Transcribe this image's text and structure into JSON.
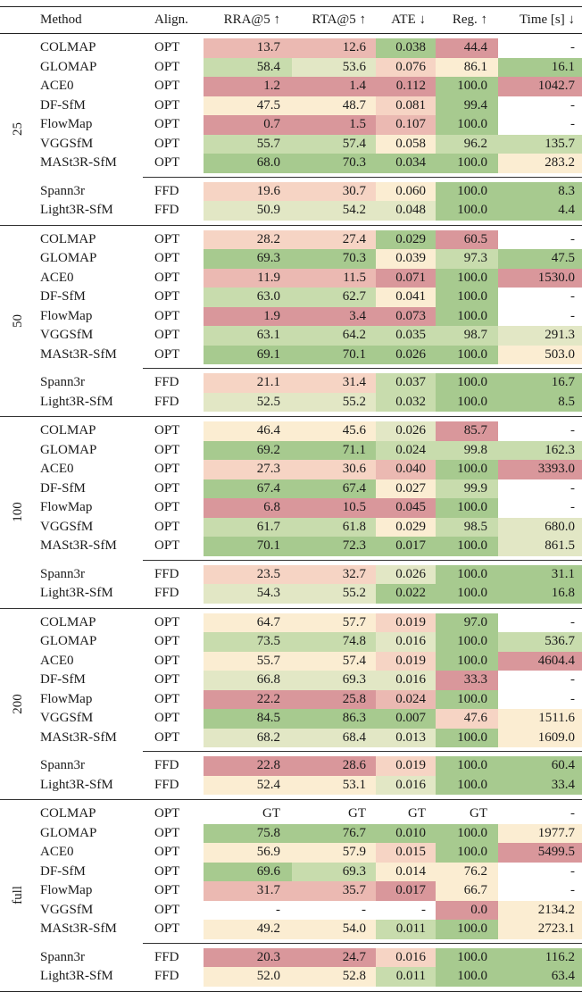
{
  "palette": {
    "R3": "#d9979b",
    "R2": "#ebb9b2",
    "R1": "#f6d4c4",
    "Y": "#fbedd2",
    "G1": "#e2e7c5",
    "G2": "#c8dcad",
    "G3": "#a7ca8f",
    "N": "#ffffff"
  },
  "header": {
    "method": "Method",
    "align": "Align.",
    "rra": "RRA@5 ↑",
    "rta": "RTA@5 ↑",
    "ate": "ATE ↓",
    "reg": "Reg. ↑",
    "time": "Time [s] ↓"
  },
  "groups": [
    {
      "label": "25",
      "rows": [
        {
          "method": "COLMAP",
          "align": "OPT",
          "values": [
            "13.7",
            "12.6",
            "0.038",
            "44.4",
            "-"
          ],
          "colors": [
            "R2",
            "R2",
            "G3",
            "R3",
            "N"
          ]
        },
        {
          "method": "GLOMAP",
          "align": "OPT",
          "values": [
            "58.4",
            "53.6",
            "0.076",
            "86.1",
            "16.1"
          ],
          "colors": [
            "G2",
            "G1",
            "R1",
            "Y",
            "G3"
          ]
        },
        {
          "method": "ACE0",
          "align": "OPT",
          "values": [
            "1.2",
            "1.4",
            "0.112",
            "100.0",
            "1042.7"
          ],
          "colors": [
            "R3",
            "R3",
            "R3",
            "G3",
            "R3"
          ]
        },
        {
          "method": "DF-SfM",
          "align": "OPT",
          "values": [
            "47.5",
            "48.7",
            "0.081",
            "99.4",
            "-"
          ],
          "colors": [
            "Y",
            "Y",
            "R1",
            "G3",
            "N"
          ]
        },
        {
          "method": "FlowMap",
          "align": "OPT",
          "values": [
            "0.7",
            "1.5",
            "0.107",
            "100.0",
            "-"
          ],
          "colors": [
            "R3",
            "R3",
            "R2",
            "G3",
            "N"
          ]
        },
        {
          "method": "VGGSfM",
          "align": "OPT",
          "values": [
            "55.7",
            "57.4",
            "0.058",
            "96.2",
            "135.7"
          ],
          "colors": [
            "G2",
            "G2",
            "Y",
            "G2",
            "G2"
          ]
        },
        {
          "method": "MASt3R-SfM",
          "align": "OPT",
          "values": [
            "68.0",
            "70.3",
            "0.034",
            "100.0",
            "283.2"
          ],
          "colors": [
            "G3",
            "G3",
            "G3",
            "G3",
            "Y"
          ]
        },
        {
          "method": "Spann3r",
          "align": "FFD",
          "values": [
            "19.6",
            "30.7",
            "0.060",
            "100.0",
            "8.3"
          ],
          "colors": [
            "R1",
            "R1",
            "Y",
            "G3",
            "G3"
          ]
        },
        {
          "method": "Light3R-SfM",
          "align": "FFD",
          "values": [
            "50.9",
            "54.2",
            "0.048",
            "100.0",
            "4.4"
          ],
          "colors": [
            "G1",
            "G1",
            "G1",
            "G3",
            "G3"
          ]
        }
      ]
    },
    {
      "label": "50",
      "rows": [
        {
          "method": "COLMAP",
          "align": "OPT",
          "values": [
            "28.2",
            "27.4",
            "0.029",
            "60.5",
            "-"
          ],
          "colors": [
            "R1",
            "R1",
            "G3",
            "R3",
            "N"
          ]
        },
        {
          "method": "GLOMAP",
          "align": "OPT",
          "values": [
            "69.3",
            "70.3",
            "0.039",
            "97.3",
            "47.5"
          ],
          "colors": [
            "G3",
            "G3",
            "Y",
            "G2",
            "G3"
          ]
        },
        {
          "method": "ACE0",
          "align": "OPT",
          "values": [
            "11.9",
            "11.5",
            "0.071",
            "100.0",
            "1530.0"
          ],
          "colors": [
            "R2",
            "R2",
            "R3",
            "G3",
            "R3"
          ]
        },
        {
          "method": "DF-SfM",
          "align": "OPT",
          "values": [
            "63.0",
            "62.7",
            "0.041",
            "100.0",
            "-"
          ],
          "colors": [
            "G2",
            "G2",
            "Y",
            "G3",
            "N"
          ]
        },
        {
          "method": "FlowMap",
          "align": "OPT",
          "values": [
            "1.9",
            "3.4",
            "0.073",
            "100.0",
            "-"
          ],
          "colors": [
            "R3",
            "R3",
            "R3",
            "G3",
            "N"
          ]
        },
        {
          "method": "VGGSfM",
          "align": "OPT",
          "values": [
            "63.1",
            "64.2",
            "0.035",
            "98.7",
            "291.3"
          ],
          "colors": [
            "G2",
            "G2",
            "G2",
            "G2",
            "G1"
          ]
        },
        {
          "method": "MASt3R-SfM",
          "align": "OPT",
          "values": [
            "69.1",
            "70.1",
            "0.026",
            "100.0",
            "503.0"
          ],
          "colors": [
            "G3",
            "G3",
            "G3",
            "G3",
            "Y"
          ]
        },
        {
          "method": "Spann3r",
          "align": "FFD",
          "values": [
            "21.1",
            "31.4",
            "0.037",
            "100.0",
            "16.7"
          ],
          "colors": [
            "R1",
            "R1",
            "G2",
            "G3",
            "G3"
          ]
        },
        {
          "method": "Light3R-SfM",
          "align": "FFD",
          "values": [
            "52.5",
            "55.2",
            "0.032",
            "100.0",
            "8.5"
          ],
          "colors": [
            "G1",
            "G1",
            "G2",
            "G3",
            "G3"
          ]
        }
      ]
    },
    {
      "label": "100",
      "rows": [
        {
          "method": "COLMAP",
          "align": "OPT",
          "values": [
            "46.4",
            "45.6",
            "0.026",
            "85.7",
            "-"
          ],
          "colors": [
            "Y",
            "Y",
            "G1",
            "R3",
            "N"
          ]
        },
        {
          "method": "GLOMAP",
          "align": "OPT",
          "values": [
            "69.2",
            "71.1",
            "0.024",
            "99.8",
            "162.3"
          ],
          "colors": [
            "G3",
            "G3",
            "G2",
            "G2",
            "G2"
          ]
        },
        {
          "method": "ACE0",
          "align": "OPT",
          "values": [
            "27.3",
            "30.6",
            "0.040",
            "100.0",
            "3393.0"
          ],
          "colors": [
            "R1",
            "R1",
            "R2",
            "G3",
            "R3"
          ]
        },
        {
          "method": "DF-SfM",
          "align": "OPT",
          "values": [
            "67.4",
            "67.4",
            "0.027",
            "99.9",
            "-"
          ],
          "colors": [
            "G3",
            "G3",
            "Y",
            "G2",
            "N"
          ]
        },
        {
          "method": "FlowMap",
          "align": "OPT",
          "values": [
            "6.8",
            "10.5",
            "0.045",
            "100.0",
            "-"
          ],
          "colors": [
            "R3",
            "R3",
            "R3",
            "G3",
            "N"
          ]
        },
        {
          "method": "VGGSfM",
          "align": "OPT",
          "values": [
            "61.7",
            "61.8",
            "0.029",
            "98.5",
            "680.0"
          ],
          "colors": [
            "G2",
            "G2",
            "Y",
            "G2",
            "G1"
          ]
        },
        {
          "method": "MASt3R-SfM",
          "align": "OPT",
          "values": [
            "70.1",
            "72.3",
            "0.017",
            "100.0",
            "861.5"
          ],
          "colors": [
            "G3",
            "G3",
            "G3",
            "G3",
            "G1"
          ]
        },
        {
          "method": "Spann3r",
          "align": "FFD",
          "values": [
            "23.5",
            "32.7",
            "0.026",
            "100.0",
            "31.1"
          ],
          "colors": [
            "R1",
            "R1",
            "G1",
            "G3",
            "G3"
          ]
        },
        {
          "method": "Light3R-SfM",
          "align": "FFD",
          "values": [
            "54.3",
            "55.2",
            "0.022",
            "100.0",
            "16.8"
          ],
          "colors": [
            "G1",
            "G1",
            "G3",
            "G3",
            "G3"
          ]
        }
      ]
    },
    {
      "label": "200",
      "rows": [
        {
          "method": "COLMAP",
          "align": "OPT",
          "values": [
            "64.7",
            "57.7",
            "0.019",
            "97.0",
            "-"
          ],
          "colors": [
            "Y",
            "Y",
            "R1",
            "G3",
            "N"
          ]
        },
        {
          "method": "GLOMAP",
          "align": "OPT",
          "values": [
            "73.5",
            "74.8",
            "0.016",
            "100.0",
            "536.7"
          ],
          "colors": [
            "G2",
            "G2",
            "G1",
            "G3",
            "G2"
          ]
        },
        {
          "method": "ACE0",
          "align": "OPT",
          "values": [
            "55.7",
            "57.4",
            "0.019",
            "100.0",
            "4604.4"
          ],
          "colors": [
            "Y",
            "Y",
            "R1",
            "G3",
            "R3"
          ]
        },
        {
          "method": "DF-SfM",
          "align": "OPT",
          "values": [
            "66.8",
            "69.3",
            "0.016",
            "33.3",
            "-"
          ],
          "colors": [
            "G1",
            "G1",
            "G1",
            "R3",
            "N"
          ]
        },
        {
          "method": "FlowMap",
          "align": "OPT",
          "values": [
            "22.2",
            "25.8",
            "0.024",
            "100.0",
            "-"
          ],
          "colors": [
            "R3",
            "R3",
            "R2",
            "G3",
            "N"
          ]
        },
        {
          "method": "VGGSfM",
          "align": "OPT",
          "values": [
            "84.5",
            "86.3",
            "0.007",
            "47.6",
            "1511.6"
          ],
          "colors": [
            "G3",
            "G3",
            "G3",
            "R1",
            "Y"
          ]
        },
        {
          "method": "MASt3R-SfM",
          "align": "OPT",
          "values": [
            "68.2",
            "68.4",
            "0.013",
            "100.0",
            "1609.0"
          ],
          "colors": [
            "G1",
            "G1",
            "G1",
            "G3",
            "Y"
          ]
        },
        {
          "method": "Spann3r",
          "align": "FFD",
          "values": [
            "22.8",
            "28.6",
            "0.019",
            "100.0",
            "60.4"
          ],
          "colors": [
            "R3",
            "R3",
            "R1",
            "G3",
            "G3"
          ]
        },
        {
          "method": "Light3R-SfM",
          "align": "FFD",
          "values": [
            "52.4",
            "53.1",
            "0.016",
            "100.0",
            "33.4"
          ],
          "colors": [
            "Y",
            "Y",
            "G1",
            "G3",
            "G3"
          ]
        }
      ]
    },
    {
      "label": "full",
      "rows": [
        {
          "method": "COLMAP",
          "align": "OPT",
          "values": [
            "GT",
            "GT",
            "GT",
            "GT",
            "-"
          ],
          "colors": [
            "N",
            "N",
            "N",
            "N",
            "N"
          ]
        },
        {
          "method": "GLOMAP",
          "align": "OPT",
          "values": [
            "75.8",
            "76.7",
            "0.010",
            "100.0",
            "1977.7"
          ],
          "colors": [
            "G3",
            "G3",
            "G3",
            "G3",
            "Y"
          ]
        },
        {
          "method": "ACE0",
          "align": "OPT",
          "values": [
            "56.9",
            "57.9",
            "0.015",
            "100.0",
            "5499.5"
          ],
          "colors": [
            "Y",
            "Y",
            "R1",
            "G3",
            "R3"
          ]
        },
        {
          "method": "DF-SfM",
          "align": "OPT",
          "values": [
            "69.6",
            "69.3",
            "0.014",
            "76.2",
            "-"
          ],
          "colors": [
            "G3",
            "G2",
            "Y",
            "Y",
            "N"
          ]
        },
        {
          "method": "FlowMap",
          "align": "OPT",
          "values": [
            "31.7",
            "35.7",
            "0.017",
            "66.7",
            "-"
          ],
          "colors": [
            "R2",
            "R2",
            "R3",
            "Y",
            "N"
          ]
        },
        {
          "method": "VGGSfM",
          "align": "OPT",
          "values": [
            "-",
            "-",
            "-",
            "0.0",
            "2134.2"
          ],
          "colors": [
            "N",
            "N",
            "N",
            "R3",
            "Y"
          ]
        },
        {
          "method": "MASt3R-SfM",
          "align": "OPT",
          "values": [
            "49.2",
            "54.0",
            "0.011",
            "100.0",
            "2723.1"
          ],
          "colors": [
            "Y",
            "Y",
            "G2",
            "G3",
            "Y"
          ]
        },
        {
          "method": "Spann3r",
          "align": "FFD",
          "values": [
            "20.3",
            "24.7",
            "0.016",
            "100.0",
            "116.2"
          ],
          "colors": [
            "R3",
            "R3",
            "R1",
            "G3",
            "G3"
          ]
        },
        {
          "method": "Light3R-SfM",
          "align": "FFD",
          "values": [
            "52.0",
            "52.8",
            "0.011",
            "100.0",
            "63.4"
          ],
          "colors": [
            "Y",
            "Y",
            "G2",
            "G3",
            "G3"
          ]
        }
      ]
    }
  ]
}
